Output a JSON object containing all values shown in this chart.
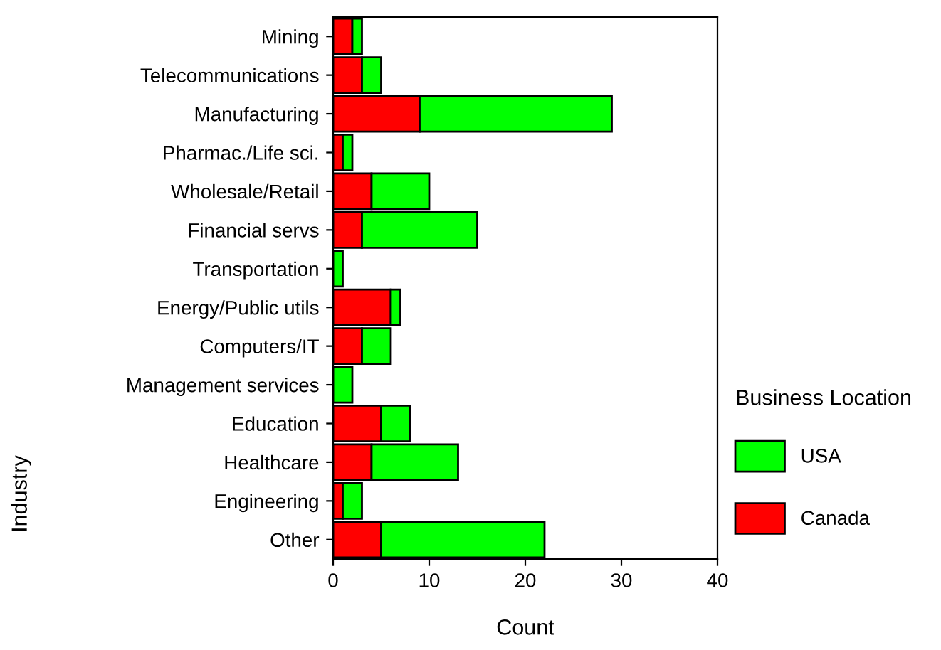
{
  "chart_data": {
    "type": "bar",
    "orientation": "horizontal",
    "stacked": true,
    "categories": [
      "Mining",
      "Telecommunications",
      "Manufacturing",
      "Pharmac./Life sci.",
      "Wholesale/Retail",
      "Financial servs",
      "Transportation",
      "Energy/Public utils",
      "Computers/IT",
      "Management services",
      "Education",
      "Healthcare",
      "Engineering",
      "Other"
    ],
    "series": [
      {
        "name": "Canada",
        "color": "#ff0000",
        "values": [
          2,
          3,
          9,
          1,
          4,
          3,
          0,
          6,
          3,
          0,
          5,
          4,
          1,
          5
        ]
      },
      {
        "name": "USA",
        "color": "#00ff00",
        "values": [
          1,
          2,
          20,
          1,
          6,
          12,
          1,
          1,
          3,
          2,
          3,
          9,
          2,
          17
        ]
      }
    ],
    "xlim": [
      0,
      40
    ],
    "xticks": [
      0,
      10,
      20,
      30,
      40
    ],
    "xlabel": "Count",
    "ylabel": "Industry",
    "legend_title": "Business Location",
    "legend": "right",
    "grid": false
  }
}
